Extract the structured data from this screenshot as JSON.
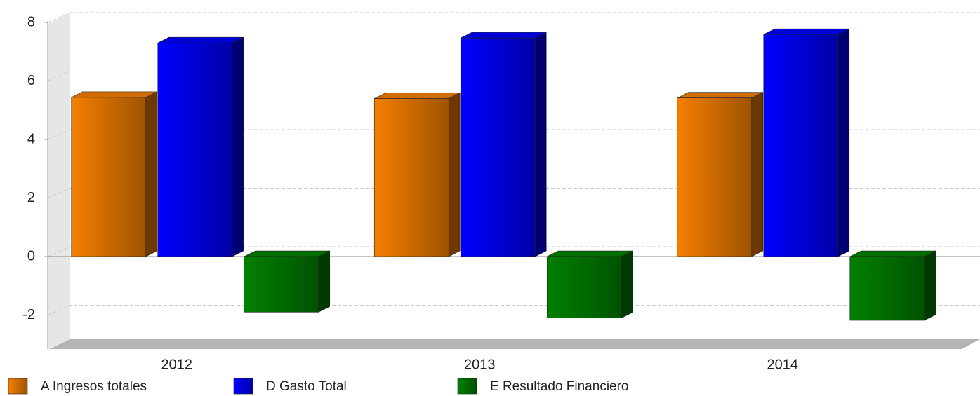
{
  "chart_data": {
    "type": "bar",
    "categories": [
      "2012",
      "2013",
      "2014"
    ],
    "series": [
      {
        "name": "A Ingresos totales",
        "color": "#f57f00",
        "values": [
          5.44,
          5.4,
          5.42
        ]
      },
      {
        "name": "D Gasto Total",
        "color": "#0000ff",
        "values": [
          7.3,
          7.47,
          7.59
        ]
      },
      {
        "name": "E Resultado Financiero",
        "color": "#008000",
        "values": [
          -1.9,
          -2.1,
          -2.18
        ]
      }
    ],
    "ylim": [
      -3,
      8.4
    ],
    "yticks": [
      -2,
      0,
      2,
      4,
      6,
      8
    ],
    "grid": true
  }
}
